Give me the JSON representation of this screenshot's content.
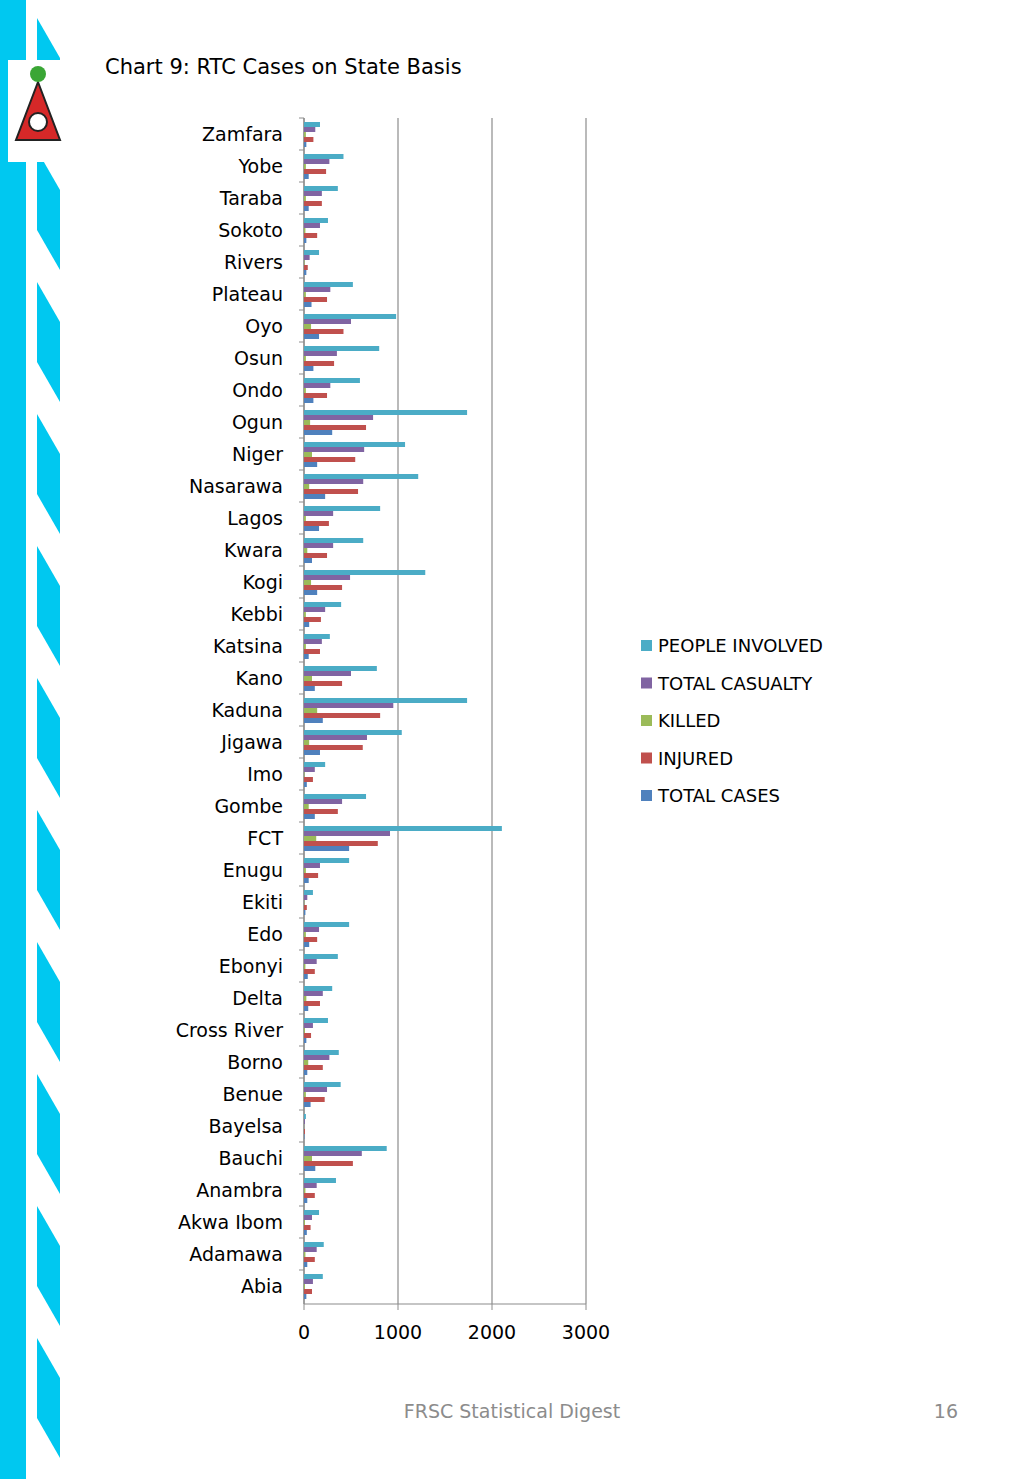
{
  "chart_data": {
    "type": "bar",
    "orientation": "horizontal",
    "title": "Chart 9: RTC Cases on State Basis",
    "categories": [
      "Zamfara",
      "Yobe",
      "Taraba",
      "Sokoto",
      "Rivers",
      "Plateau",
      "Oyo",
      "Osun",
      "Ondo",
      "Ogun",
      "Niger",
      "Nasarawa",
      "Lagos",
      "Kwara",
      "Kogi",
      "Kebbi",
      "Katsina",
      "Kano",
      "Kaduna",
      "Jigawa",
      "Imo",
      "Gombe",
      "FCT",
      "Enugu",
      "Ekiti",
      "Edo",
      "Ebonyi",
      "Delta",
      "Cross River",
      "Borno",
      "Benue",
      "Bayelsa",
      "Bauchi",
      "Anambra",
      "Akwa Ibom",
      "Adamawa",
      "Abia"
    ],
    "series": [
      {
        "name": "PEOPLE INVOLVED",
        "color": "#4bacc6",
        "values": [
          170,
          420,
          360,
          255,
          160,
          520,
          980,
          800,
          595,
          1735,
          1075,
          1215,
          810,
          630,
          1290,
          395,
          275,
          775,
          1735,
          1040,
          225,
          660,
          2105,
          480,
          95,
          480,
          360,
          300,
          255,
          370,
          390,
          20,
          880,
          340,
          160,
          210,
          200
        ]
      },
      {
        "name": "TOTAL CASUALTY",
        "color": "#8064a2",
        "values": [
          120,
          270,
          190,
          170,
          60,
          280,
          500,
          350,
          280,
          735,
          640,
          630,
          310,
          310,
          490,
          225,
          190,
          500,
          950,
          670,
          115,
          405,
          915,
          170,
          35,
          160,
          135,
          200,
          95,
          270,
          245,
          10,
          615,
          135,
          85,
          135,
          95
        ]
      },
      {
        "name": "KILLED",
        "color": "#9bbb59",
        "values": [
          20,
          20,
          20,
          15,
          5,
          20,
          75,
          20,
          20,
          65,
          85,
          55,
          20,
          35,
          75,
          20,
          20,
          85,
          140,
          55,
          5,
          50,
          130,
          20,
          3,
          20,
          15,
          25,
          10,
          45,
          20,
          1,
          85,
          15,
          10,
          15,
          10
        ]
      },
      {
        "name": "INJURED",
        "color": "#c0504d",
        "values": [
          100,
          235,
          190,
          140,
          40,
          245,
          420,
          320,
          245,
          660,
          545,
          575,
          265,
          245,
          405,
          180,
          170,
          405,
          810,
          625,
          95,
          360,
          785,
          150,
          30,
          140,
          115,
          170,
          75,
          200,
          220,
          10,
          520,
          115,
          70,
          115,
          85
        ]
      },
      {
        "name": "TOTAL CASES",
        "color": "#4f81bd",
        "values": [
          25,
          50,
          50,
          25,
          25,
          80,
          160,
          100,
          100,
          300,
          140,
          225,
          160,
          85,
          140,
          55,
          50,
          115,
          200,
          170,
          30,
          115,
          480,
          50,
          15,
          55,
          40,
          45,
          25,
          35,
          70,
          5,
          120,
          35,
          30,
          35,
          25
        ]
      }
    ],
    "xlim": [
      0,
      3000
    ],
    "xticks": [
      0,
      1000,
      2000,
      3000
    ],
    "grid": true,
    "legend": "right"
  },
  "page": {
    "footer": "FRSC Statistical Digest",
    "page_number": "16"
  }
}
